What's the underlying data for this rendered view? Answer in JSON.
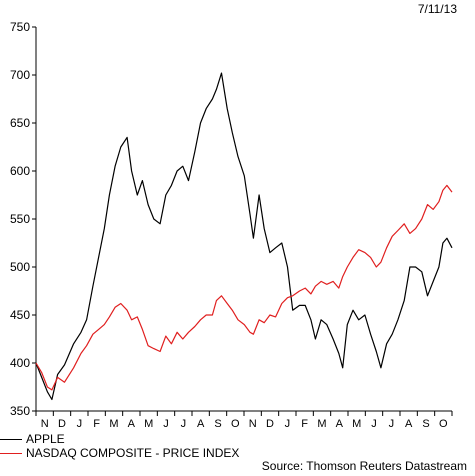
{
  "date_stamp": "7/11/13",
  "source": "Source: Thomson Reuters Datastream",
  "chart_data": {
    "type": "line",
    "title": "",
    "xlabel": "",
    "ylabel": "",
    "ylim": [
      350,
      750
    ],
    "yticks": [
      350,
      400,
      450,
      500,
      550,
      600,
      650,
      700,
      750
    ],
    "x_month_labels": [
      "N",
      "D",
      "J",
      "F",
      "M",
      "A",
      "M",
      "J",
      "J",
      "A",
      "S",
      "O",
      "N",
      "D",
      "J",
      "F",
      "M",
      "A",
      "M",
      "J",
      "J",
      "A",
      "S",
      "O"
    ],
    "x_range": [
      "2011-10-31",
      "2013-10-31"
    ],
    "grid": false,
    "legend_position": "bottom-left",
    "series": [
      {
        "name": "APPLE",
        "color": "#000000",
        "points": [
          [
            "2011-10-31",
            400
          ],
          [
            "2011-11-10",
            385
          ],
          [
            "2011-11-20",
            370
          ],
          [
            "2011-11-28",
            362
          ],
          [
            "2011-12-08",
            388
          ],
          [
            "2011-12-20",
            398
          ],
          [
            "2012-01-05",
            420
          ],
          [
            "2012-01-18",
            432
          ],
          [
            "2012-01-28",
            445
          ],
          [
            "2012-02-08",
            480
          ],
          [
            "2012-02-18",
            510
          ],
          [
            "2012-02-28",
            540
          ],
          [
            "2012-03-08",
            575
          ],
          [
            "2012-03-18",
            605
          ],
          [
            "2012-03-28",
            625
          ],
          [
            "2012-04-08",
            635
          ],
          [
            "2012-04-16",
            600
          ],
          [
            "2012-04-26",
            575
          ],
          [
            "2012-05-05",
            590
          ],
          [
            "2012-05-15",
            565
          ],
          [
            "2012-05-25",
            550
          ],
          [
            "2012-06-05",
            545
          ],
          [
            "2012-06-15",
            575
          ],
          [
            "2012-06-25",
            585
          ],
          [
            "2012-07-05",
            600
          ],
          [
            "2012-07-15",
            605
          ],
          [
            "2012-07-25",
            590
          ],
          [
            "2012-08-05",
            620
          ],
          [
            "2012-08-15",
            650
          ],
          [
            "2012-08-25",
            665
          ],
          [
            "2012-09-05",
            675
          ],
          [
            "2012-09-12",
            685
          ],
          [
            "2012-09-21",
            702
          ],
          [
            "2012-10-01",
            665
          ],
          [
            "2012-10-10",
            640
          ],
          [
            "2012-10-20",
            615
          ],
          [
            "2012-10-31",
            595
          ],
          [
            "2012-11-10",
            555
          ],
          [
            "2012-11-16",
            530
          ],
          [
            "2012-11-26",
            575
          ],
          [
            "2012-12-05",
            540
          ],
          [
            "2012-12-15",
            515
          ],
          [
            "2012-12-25",
            520
          ],
          [
            "2013-01-05",
            525
          ],
          [
            "2013-01-15",
            500
          ],
          [
            "2013-01-24",
            455
          ],
          [
            "2013-02-05",
            460
          ],
          [
            "2013-02-15",
            460
          ],
          [
            "2013-02-25",
            445
          ],
          [
            "2013-03-05",
            425
          ],
          [
            "2013-03-15",
            445
          ],
          [
            "2013-03-25",
            440
          ],
          [
            "2013-04-05",
            425
          ],
          [
            "2013-04-15",
            410
          ],
          [
            "2013-04-22",
            395
          ],
          [
            "2013-04-30",
            440
          ],
          [
            "2013-05-10",
            455
          ],
          [
            "2013-05-20",
            445
          ],
          [
            "2013-05-31",
            450
          ],
          [
            "2013-06-10",
            430
          ],
          [
            "2013-06-20",
            412
          ],
          [
            "2013-06-28",
            395
          ],
          [
            "2013-07-08",
            420
          ],
          [
            "2013-07-18",
            430
          ],
          [
            "2013-07-28",
            445
          ],
          [
            "2013-08-08",
            465
          ],
          [
            "2013-08-18",
            500
          ],
          [
            "2013-08-28",
            500
          ],
          [
            "2013-09-08",
            495
          ],
          [
            "2013-09-18",
            470
          ],
          [
            "2013-09-28",
            485
          ],
          [
            "2013-10-08",
            500
          ],
          [
            "2013-10-15",
            525
          ],
          [
            "2013-10-22",
            530
          ],
          [
            "2013-10-31",
            520
          ]
        ]
      },
      {
        "name": "NASDAQ COMPOSITE - PRICE INDEX",
        "color": "#e01f1f",
        "points": [
          [
            "2011-10-31",
            400
          ],
          [
            "2011-11-10",
            390
          ],
          [
            "2011-11-20",
            375
          ],
          [
            "2011-11-28",
            372
          ],
          [
            "2011-12-08",
            385
          ],
          [
            "2011-12-20",
            380
          ],
          [
            "2012-01-05",
            395
          ],
          [
            "2012-01-18",
            410
          ],
          [
            "2012-01-28",
            418
          ],
          [
            "2012-02-08",
            430
          ],
          [
            "2012-02-18",
            435
          ],
          [
            "2012-02-28",
            440
          ],
          [
            "2012-03-08",
            448
          ],
          [
            "2012-03-18",
            458
          ],
          [
            "2012-03-28",
            462
          ],
          [
            "2012-04-08",
            455
          ],
          [
            "2012-04-16",
            445
          ],
          [
            "2012-04-26",
            448
          ],
          [
            "2012-05-05",
            435
          ],
          [
            "2012-05-15",
            418
          ],
          [
            "2012-05-25",
            415
          ],
          [
            "2012-06-05",
            412
          ],
          [
            "2012-06-15",
            428
          ],
          [
            "2012-06-25",
            420
          ],
          [
            "2012-07-05",
            432
          ],
          [
            "2012-07-15",
            425
          ],
          [
            "2012-07-25",
            432
          ],
          [
            "2012-08-05",
            438
          ],
          [
            "2012-08-15",
            445
          ],
          [
            "2012-08-25",
            450
          ],
          [
            "2012-09-05",
            450
          ],
          [
            "2012-09-12",
            465
          ],
          [
            "2012-09-21",
            470
          ],
          [
            "2012-10-01",
            462
          ],
          [
            "2012-10-10",
            455
          ],
          [
            "2012-10-20",
            445
          ],
          [
            "2012-10-31",
            440
          ],
          [
            "2012-11-10",
            432
          ],
          [
            "2012-11-16",
            430
          ],
          [
            "2012-11-26",
            445
          ],
          [
            "2012-12-05",
            442
          ],
          [
            "2012-12-15",
            450
          ],
          [
            "2012-12-25",
            448
          ],
          [
            "2013-01-05",
            462
          ],
          [
            "2013-01-15",
            468
          ],
          [
            "2013-01-24",
            470
          ],
          [
            "2013-02-05",
            475
          ],
          [
            "2013-02-15",
            478
          ],
          [
            "2013-02-25",
            472
          ],
          [
            "2013-03-05",
            480
          ],
          [
            "2013-03-15",
            485
          ],
          [
            "2013-03-25",
            482
          ],
          [
            "2013-04-05",
            485
          ],
          [
            "2013-04-15",
            478
          ],
          [
            "2013-04-22",
            490
          ],
          [
            "2013-04-30",
            500
          ],
          [
            "2013-05-10",
            510
          ],
          [
            "2013-05-20",
            518
          ],
          [
            "2013-05-31",
            515
          ],
          [
            "2013-06-10",
            510
          ],
          [
            "2013-06-20",
            500
          ],
          [
            "2013-06-28",
            505
          ],
          [
            "2013-07-08",
            520
          ],
          [
            "2013-07-18",
            532
          ],
          [
            "2013-07-28",
            538
          ],
          [
            "2013-08-08",
            545
          ],
          [
            "2013-08-18",
            535
          ],
          [
            "2013-08-28",
            540
          ],
          [
            "2013-09-08",
            550
          ],
          [
            "2013-09-18",
            565
          ],
          [
            "2013-09-28",
            560
          ],
          [
            "2013-10-08",
            568
          ],
          [
            "2013-10-15",
            580
          ],
          [
            "2013-10-22",
            585
          ],
          [
            "2013-10-31",
            578
          ]
        ]
      }
    ]
  }
}
